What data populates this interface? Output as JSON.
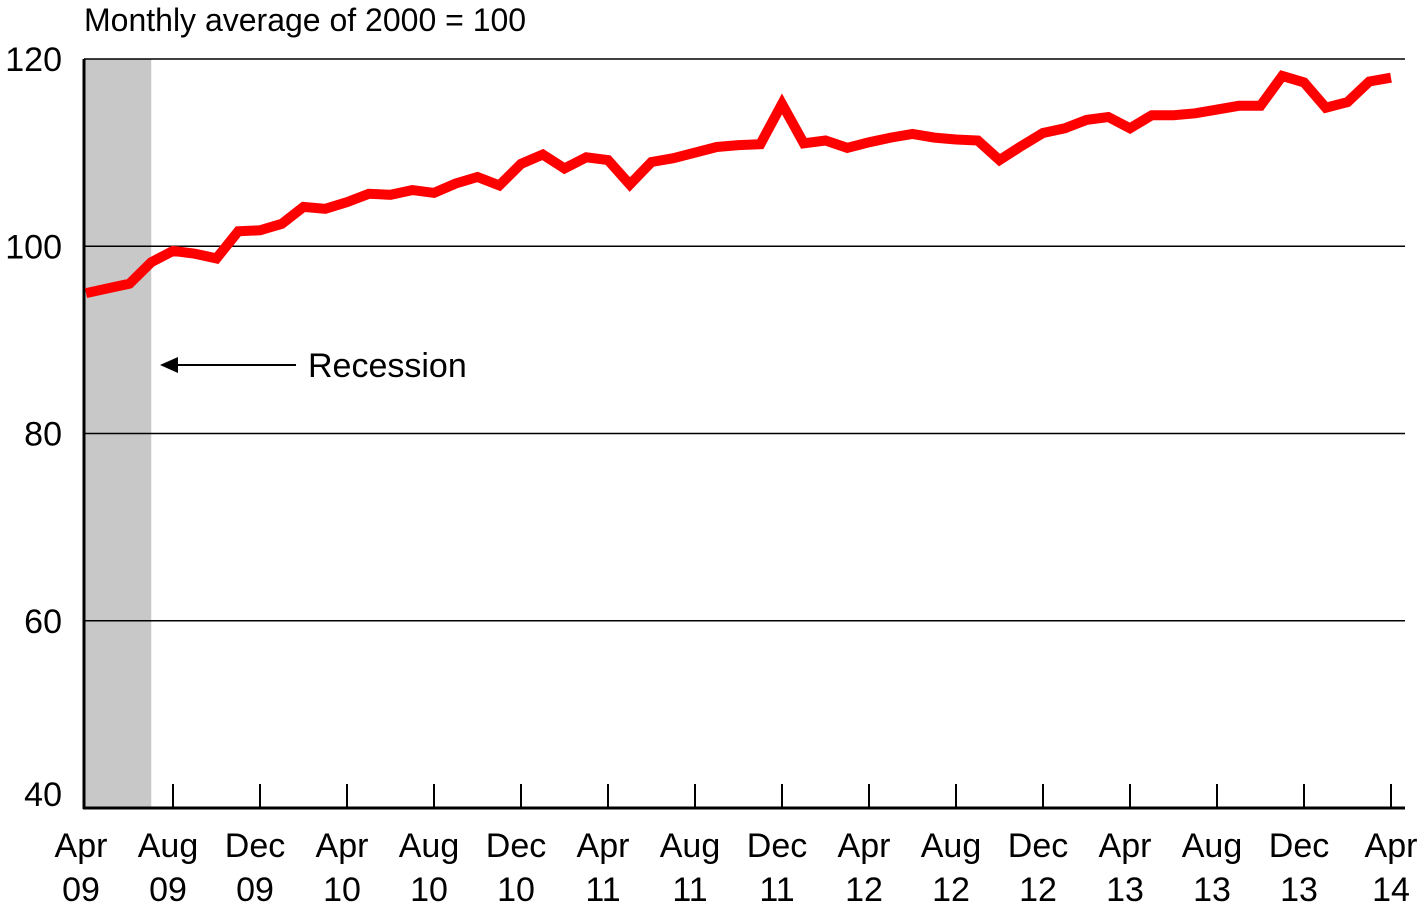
{
  "chart_data": {
    "type": "line",
    "title": "",
    "unit_label": "Monthly average of 2000 = 100",
    "xlabel": "",
    "ylabel": "",
    "ylim": [
      40,
      120
    ],
    "y_ticks": [
      "40",
      "60",
      "80",
      "100",
      "120"
    ],
    "y_gridlines": [
      60,
      80,
      100,
      120
    ],
    "grid": true,
    "x_ticks": [
      {
        "month": "Apr",
        "year": "09",
        "index": 0
      },
      {
        "month": "Aug",
        "year": "09",
        "index": 4
      },
      {
        "month": "Dec",
        "year": "09",
        "index": 8
      },
      {
        "month": "Apr",
        "year": "10",
        "index": 12
      },
      {
        "month": "Aug",
        "year": "10",
        "index": 16
      },
      {
        "month": "Dec",
        "year": "10",
        "index": 20
      },
      {
        "month": "Apr",
        "year": "11",
        "index": 24
      },
      {
        "month": "Aug",
        "year": "11",
        "index": 28
      },
      {
        "month": "Dec",
        "year": "11",
        "index": 32
      },
      {
        "month": "Apr",
        "year": "12",
        "index": 36
      },
      {
        "month": "Aug",
        "year": "12",
        "index": 40
      },
      {
        "month": "Dec",
        "year": "12",
        "index": 44
      },
      {
        "month": "Apr",
        "year": "13",
        "index": 48
      },
      {
        "month": "Aug",
        "year": "13",
        "index": 52
      },
      {
        "month": "Dec",
        "year": "13",
        "index": 56
      },
      {
        "month": "Apr",
        "year": "14",
        "index": 60
      }
    ],
    "recession": {
      "start_index": 0,
      "end_index": 3,
      "label": "Recession",
      "color": "#c8c8c8"
    },
    "series": [
      {
        "color": "#ff0000",
        "values": [
          95.0,
          95.5,
          96.0,
          98.3,
          99.5,
          99.2,
          98.7,
          101.6,
          101.7,
          102.4,
          104.2,
          104.0,
          104.7,
          105.6,
          105.5,
          106.0,
          105.7,
          106.7,
          107.4,
          106.5,
          108.8,
          109.8,
          108.3,
          109.5,
          109.2,
          106.6,
          109.0,
          109.4,
          110.0,
          110.6,
          110.8,
          110.9,
          115.2,
          111.0,
          111.3,
          110.5,
          111.1,
          111.6,
          112.0,
          111.6,
          111.4,
          111.3,
          109.2,
          110.7,
          112.1,
          112.6,
          113.5,
          113.8,
          112.6,
          114.0,
          114.0,
          114.2,
          114.6,
          115.0,
          115.0,
          118.2,
          117.5,
          114.8,
          115.4,
          117.6,
          118.0
        ]
      }
    ]
  }
}
